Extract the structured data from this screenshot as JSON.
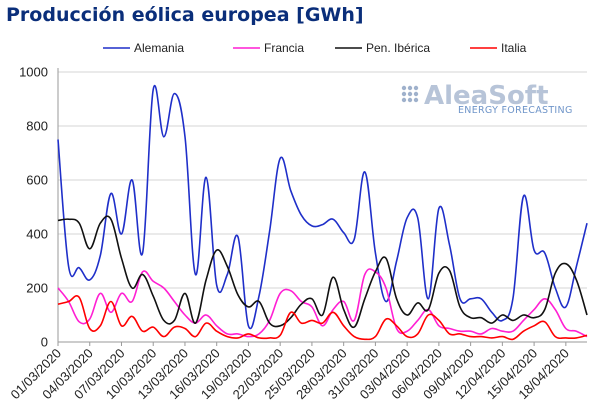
{
  "chart_data": {
    "type": "line",
    "title": "Producción eólica europea [GWh]",
    "xlabel": "",
    "ylabel": "",
    "ylim": [
      0,
      1000
    ],
    "yticks": [
      0,
      200,
      400,
      600,
      800,
      1000
    ],
    "grid": true,
    "legend_position": "top",
    "x": [
      "01/03/2020",
      "02/03/2020",
      "03/03/2020",
      "04/03/2020",
      "05/03/2020",
      "06/03/2020",
      "07/03/2020",
      "08/03/2020",
      "09/03/2020",
      "10/03/2020",
      "11/03/2020",
      "12/03/2020",
      "13/03/2020",
      "14/03/2020",
      "15/03/2020",
      "16/03/2020",
      "17/03/2020",
      "18/03/2020",
      "19/03/2020",
      "20/03/2020",
      "21/03/2020",
      "22/03/2020",
      "23/03/2020",
      "24/03/2020",
      "25/03/2020",
      "26/03/2020",
      "27/03/2020",
      "28/03/2020",
      "29/03/2020",
      "30/03/2020",
      "31/03/2020",
      "01/04/2020",
      "02/04/2020",
      "03/04/2020",
      "04/04/2020",
      "05/04/2020",
      "06/04/2020",
      "07/04/2020",
      "08/04/2020",
      "09/04/2020",
      "10/04/2020",
      "11/04/2020",
      "12/04/2020",
      "13/04/2020",
      "14/04/2020",
      "15/04/2020",
      "16/04/2020",
      "17/04/2020",
      "18/04/2020",
      "19/04/2020",
      "20/04/2020"
    ],
    "x_tick_labels": [
      "01/03/2020",
      "04/03/2020",
      "07/03/2020",
      "10/03/2020",
      "13/03/2020",
      "16/03/2020",
      "19/03/2020",
      "22/03/2020",
      "25/03/2020",
      "28/03/2020",
      "31/03/2020",
      "03/04/2020",
      "06/04/2020",
      "09/04/2020",
      "12/04/2020",
      "15/04/2020",
      "18/04/2020"
    ],
    "series": [
      {
        "name": "Alemania",
        "color": "#1f2fc9",
        "values": [
          750,
          280,
          275,
          230,
          320,
          550,
          400,
          600,
          330,
          935,
          760,
          920,
          760,
          250,
          610,
          210,
          250,
          390,
          60,
          170,
          410,
          680,
          560,
          470,
          430,
          435,
          455,
          405,
          380,
          630,
          330,
          150,
          300,
          460,
          460,
          160,
          495,
          360,
          160,
          160,
          160,
          110,
          80,
          160,
          540,
          340,
          330,
          200,
          130,
          280,
          440
        ]
      },
      {
        "name": "Francia",
        "color": "#ff1fd3",
        "values": [
          200,
          150,
          75,
          85,
          180,
          110,
          180,
          150,
          260,
          225,
          200,
          150,
          100,
          70,
          100,
          60,
          30,
          30,
          20,
          30,
          80,
          180,
          190,
          150,
          130,
          60,
          120,
          150,
          80,
          250,
          260,
          200,
          50,
          40,
          80,
          120,
          60,
          50,
          40,
          40,
          30,
          50,
          40,
          40,
          80,
          120,
          160,
          120,
          50,
          40,
          20
        ]
      },
      {
        "name": "Pen. Ibérica",
        "color": "#111111",
        "values": [
          450,
          455,
          440,
          345,
          440,
          455,
          310,
          200,
          250,
          170,
          80,
          80,
          180,
          70,
          230,
          340,
          280,
          175,
          130,
          150,
          70,
          60,
          90,
          140,
          160,
          100,
          240,
          120,
          55,
          160,
          260,
          310,
          160,
          100,
          145,
          120,
          255,
          265,
          130,
          90,
          90,
          70,
          100,
          80,
          100,
          90,
          120,
          255,
          290,
          230,
          100
        ]
      },
      {
        "name": "Italia",
        "color": "#ff0000",
        "values": [
          140,
          150,
          165,
          50,
          60,
          150,
          60,
          95,
          40,
          55,
          20,
          55,
          50,
          20,
          70,
          40,
          20,
          15,
          30,
          15,
          15,
          25,
          110,
          70,
          80,
          70,
          110,
          60,
          20,
          10,
          20,
          85,
          60,
          20,
          30,
          100,
          80,
          30,
          30,
          20,
          20,
          15,
          20,
          10,
          40,
          60,
          75,
          20,
          15,
          15,
          25
        ]
      }
    ]
  },
  "watermark": {
    "brand": "AleaSoft",
    "tagline": "ENERGY FORECASTING",
    "color": "#9fb1cc"
  }
}
